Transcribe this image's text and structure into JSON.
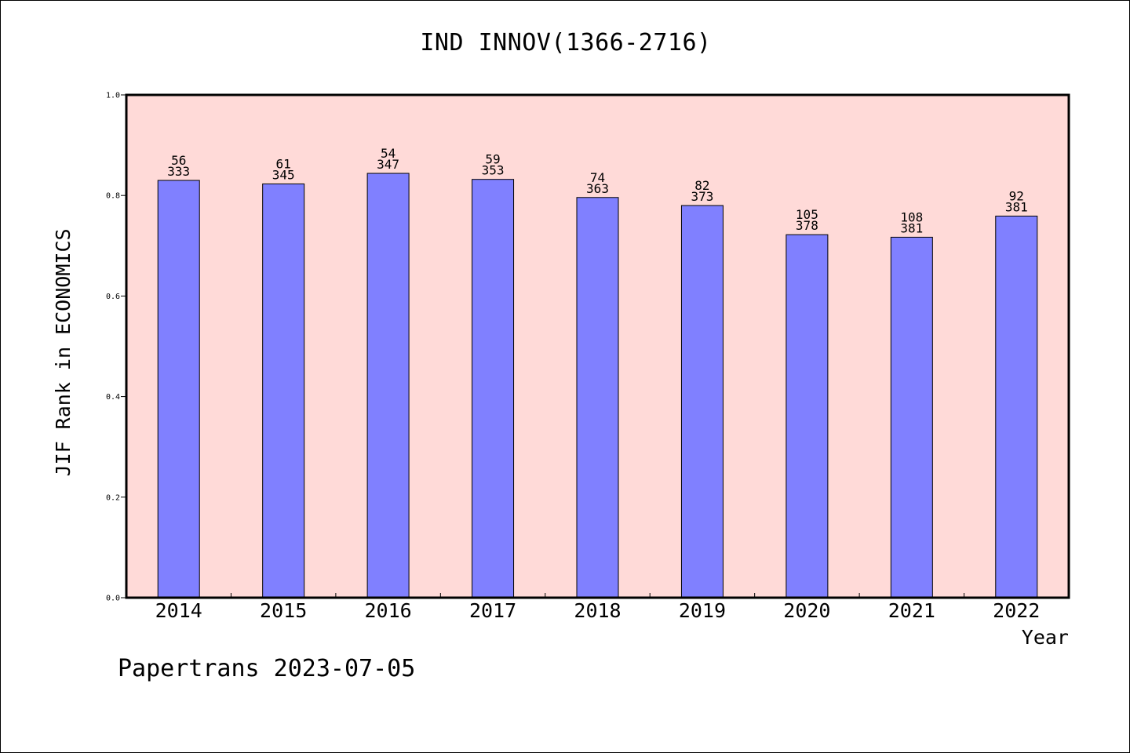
{
  "chart_data": {
    "type": "bar",
    "title": "IND INNOV(1366-2716)",
    "xlabel": "Year",
    "ylabel": "JIF Rank in ECONOMICS",
    "ylim": [
      0,
      1.0
    ],
    "yticks": [
      "0.0",
      "0.2",
      "0.4",
      "0.6",
      "0.8",
      "1.0"
    ],
    "categories": [
      "2014",
      "2015",
      "2016",
      "2017",
      "2018",
      "2019",
      "2020",
      "2021",
      "2022"
    ],
    "values": [
      0.83,
      0.823,
      0.844,
      0.832,
      0.796,
      0.78,
      0.722,
      0.717,
      0.759
    ],
    "rank": [
      "56",
      "61",
      "54",
      "59",
      "74",
      "82",
      "105",
      "108",
      "92"
    ],
    "total": [
      "333",
      "345",
      "347",
      "353",
      "363",
      "373",
      "378",
      "381",
      "381"
    ],
    "grid": false,
    "colors": {
      "bar_fill": "#8080ff",
      "bar_stroke": "#000000",
      "plot_background": "#ffdad8"
    }
  },
  "footer": {
    "watermark": "Papertrans 2023-07-05"
  }
}
